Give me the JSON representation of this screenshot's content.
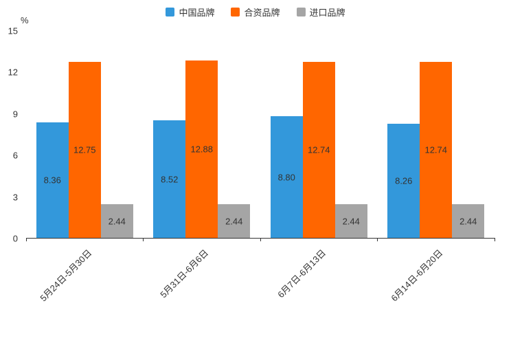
{
  "chart_data": {
    "type": "bar",
    "unit_label": "%",
    "categories": [
      "5月24日-5月30日",
      "5月31日-6月6日",
      "6月7日-6月13日",
      "6月14日-6月20日"
    ],
    "series": [
      {
        "name": "中国品牌",
        "color": "#3398DB",
        "values": [
          8.36,
          8.52,
          8.8,
          8.26
        ]
      },
      {
        "name": "合资品牌",
        "color": "#FF6600",
        "values": [
          12.75,
          12.88,
          12.74,
          12.74
        ]
      },
      {
        "name": "进口品牌",
        "color": "#A5A5A5",
        "values": [
          2.44,
          2.44,
          2.44,
          2.44
        ]
      }
    ],
    "ylim": [
      0,
      15
    ],
    "yticks": [
      0,
      3,
      6,
      9,
      12,
      15
    ],
    "legend_position": "top",
    "grid": false,
    "value_label_decimals": 2
  }
}
